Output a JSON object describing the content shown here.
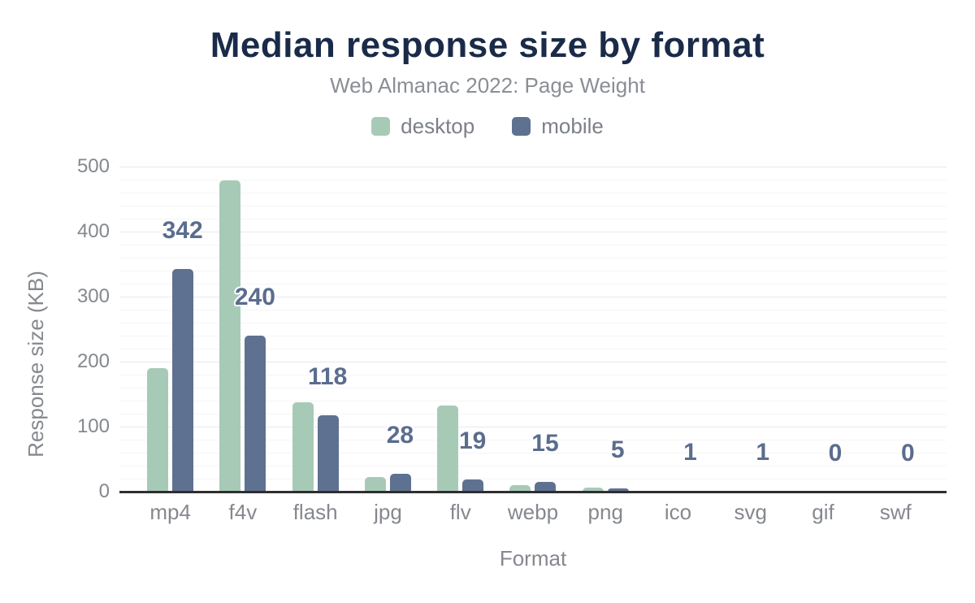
{
  "header": {
    "title": "Median response size by format",
    "subtitle": "Web Almanac 2022: Page Weight"
  },
  "legend": {
    "items": [
      {
        "label": "desktop",
        "color": "#a7cab7"
      },
      {
        "label": "mobile",
        "color": "#5f7190"
      }
    ]
  },
  "axes": {
    "x_title": "Format",
    "y_title": "Response size (KB)",
    "y_ticks": [
      0,
      100,
      200,
      300,
      400,
      500
    ],
    "y_max": 500,
    "y_minor_step": 20
  },
  "chart_data": {
    "type": "bar",
    "title": "Median response size by format",
    "subtitle": "Web Almanac 2022: Page Weight",
    "xlabel": "Format",
    "ylabel": "Response size (KB)",
    "ylim": [
      0,
      500
    ],
    "grid": "horizontal",
    "legend_position": "top",
    "categories": [
      "mp4",
      "f4v",
      "flash",
      "jpg",
      "flv",
      "webp",
      "png",
      "ico",
      "svg",
      "gif",
      "swf"
    ],
    "series": [
      {
        "name": "desktop",
        "color": "#a7cab7",
        "values": [
          190,
          479,
          138,
          22,
          133,
          10,
          6,
          1,
          1,
          0,
          0
        ]
      },
      {
        "name": "mobile",
        "color": "#5f7190",
        "values": [
          342,
          240,
          118,
          28,
          19,
          15,
          5,
          1,
          1,
          0,
          0
        ]
      }
    ],
    "data_labels": {
      "series": "mobile",
      "values": [
        "342",
        "240",
        "118",
        "28",
        "19",
        "15",
        "5",
        "1",
        "1",
        "0",
        "0"
      ]
    }
  },
  "colors": {
    "title": "#1a2b49",
    "subtitle": "#8a8e95",
    "axis_text": "#85888e",
    "data_label": "#5a6d8e",
    "axis_line": "#2f2f2f",
    "grid_minor": "#f5f5f5",
    "grid_major": "#e9e9e9",
    "background": "#ffffff"
  }
}
